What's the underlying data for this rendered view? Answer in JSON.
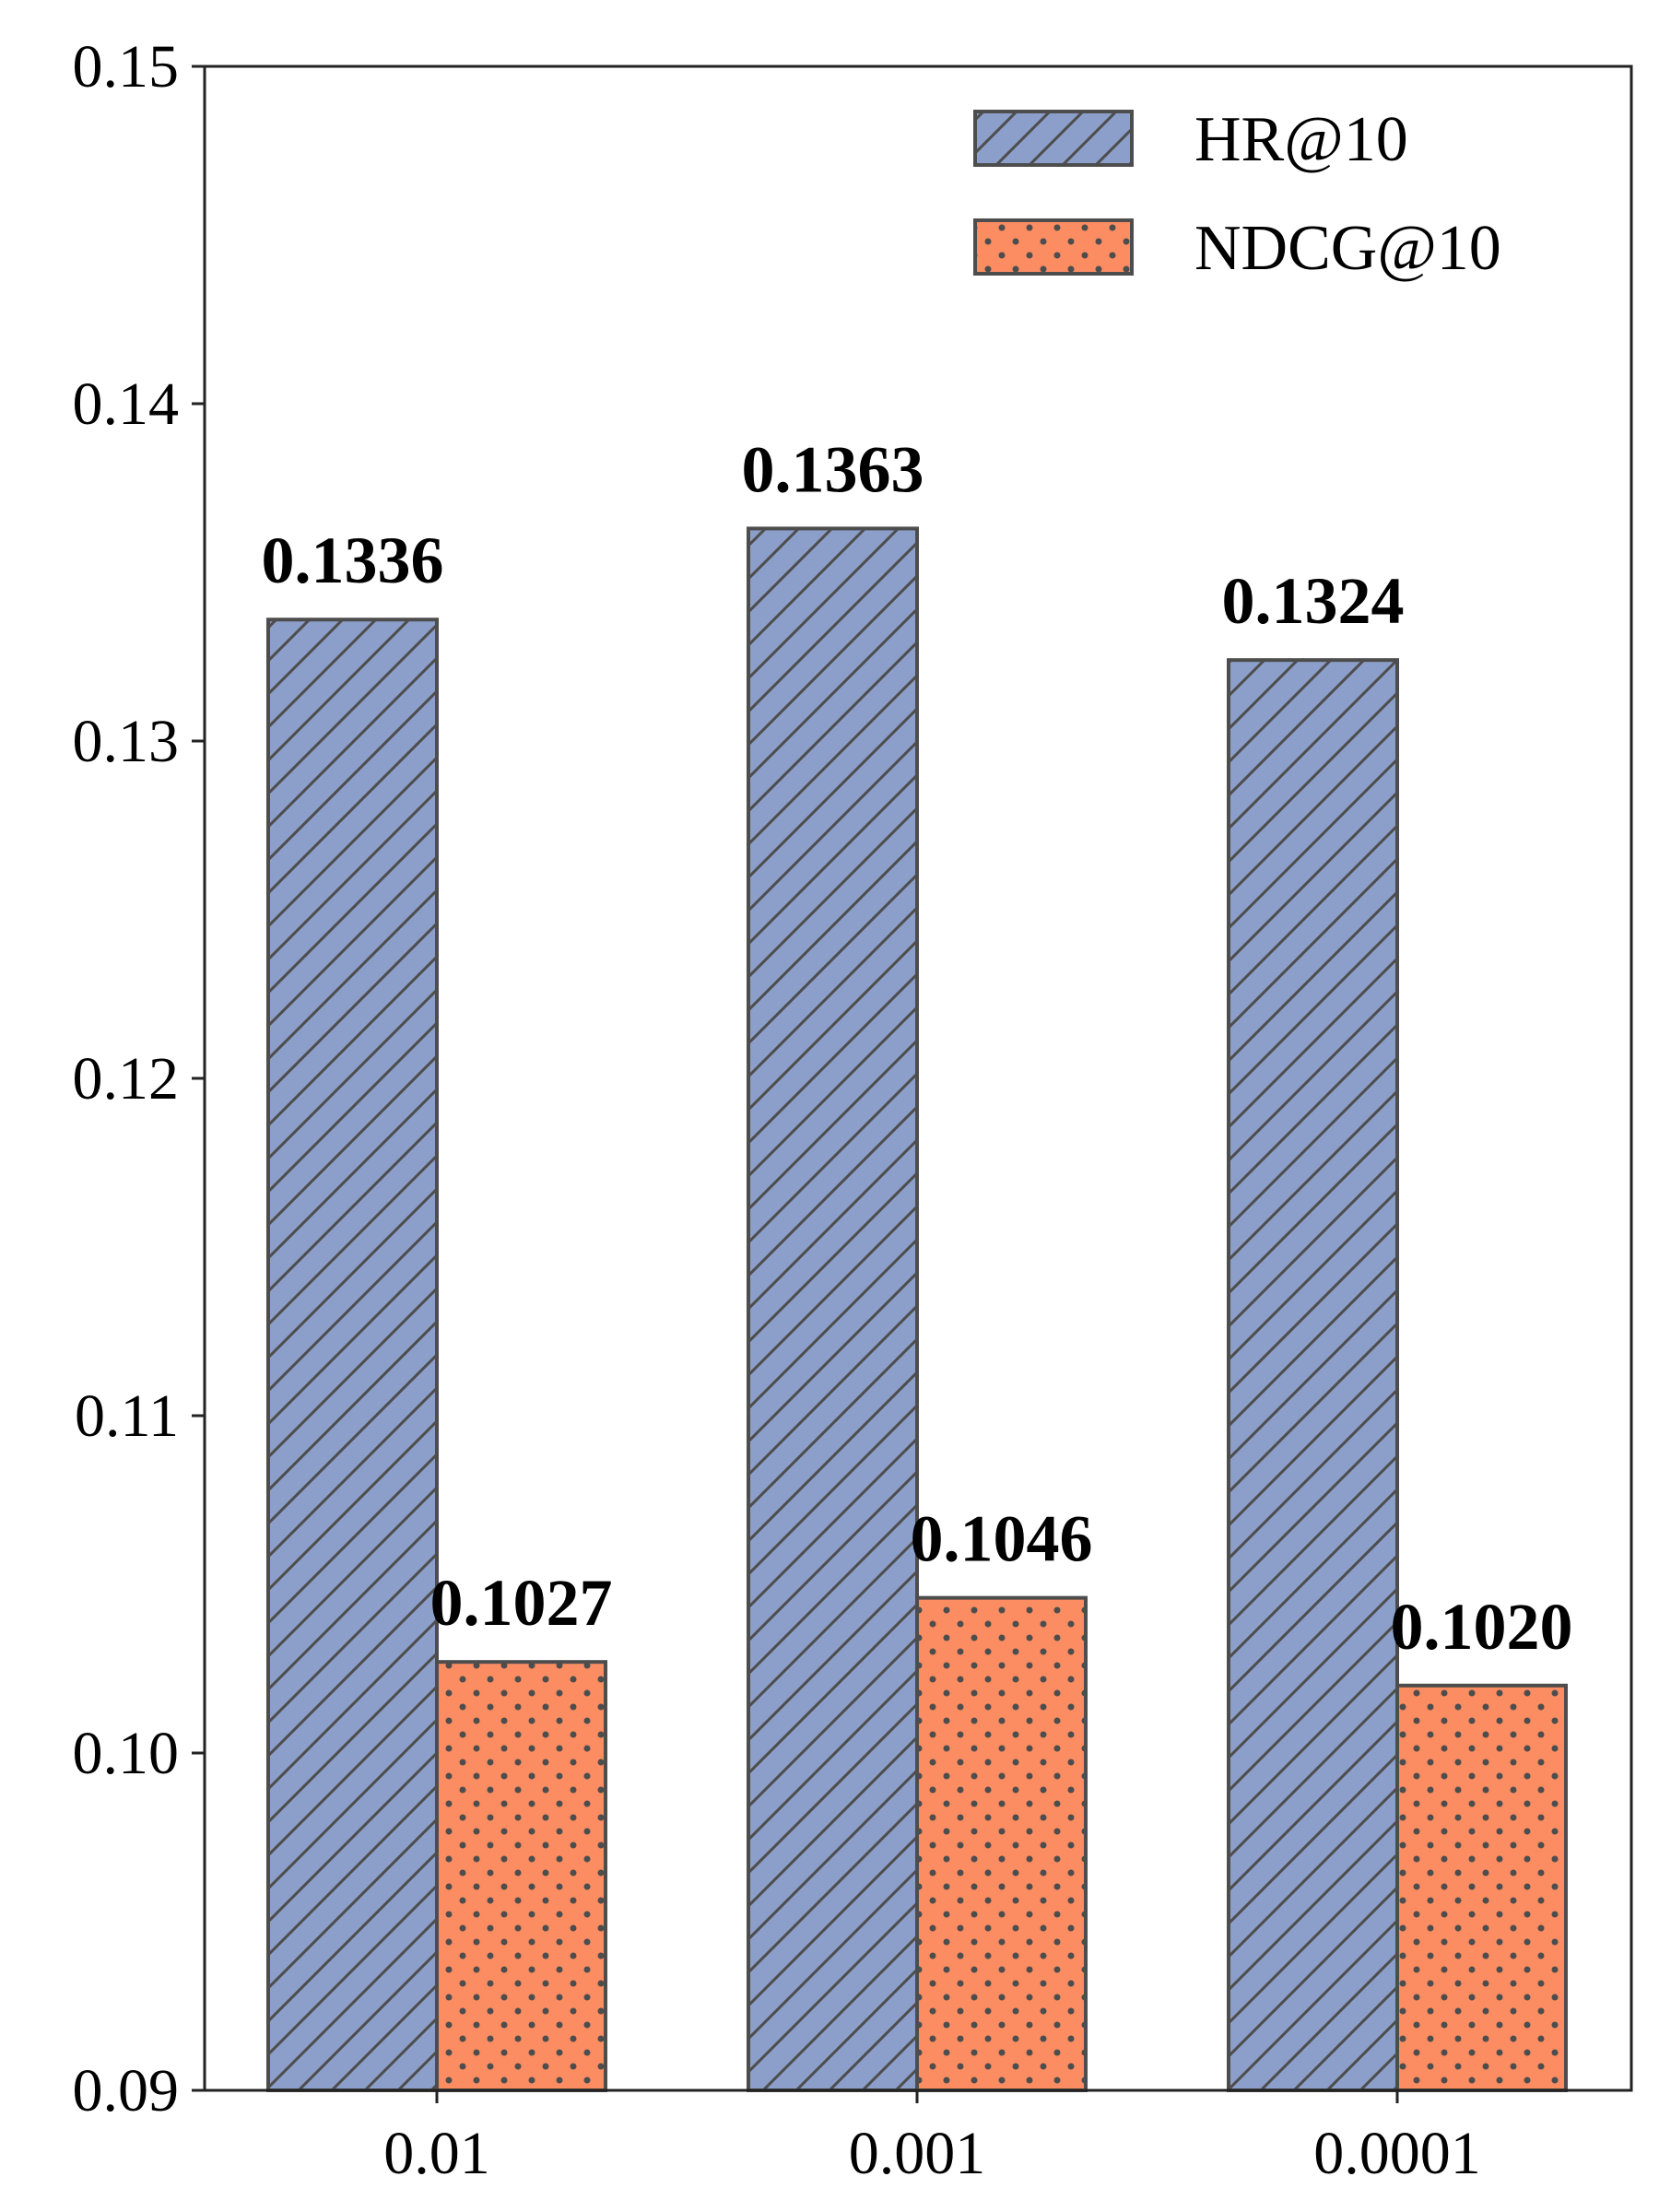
{
  "chart_data": {
    "type": "bar",
    "categories": [
      "0.01",
      "0.001",
      "0.0001"
    ],
    "series": [
      {
        "name": "HR@10",
        "values": [
          0.1336,
          0.1363,
          0.1324
        ],
        "labels": [
          "0.1336",
          "0.1363",
          "0.1324"
        ],
        "color": "#8c9fca",
        "pattern": "diagonal-hatch"
      },
      {
        "name": "NDCG@10",
        "values": [
          0.1027,
          0.1046,
          0.102
        ],
        "labels": [
          "0.1027",
          "0.1046",
          "0.1020"
        ],
        "color": "#fc8d62",
        "pattern": "dots"
      }
    ],
    "ylim": [
      0.09,
      0.15
    ],
    "yticks": [
      0.09,
      0.1,
      0.11,
      0.12,
      0.13,
      0.14,
      0.15
    ],
    "ytick_labels": [
      "0.09",
      "0.10",
      "0.11",
      "0.12",
      "0.13",
      "0.14",
      "0.15"
    ],
    "title": "",
    "xlabel": "",
    "ylabel": "",
    "grid": false,
    "legend_position": "top-right",
    "edge_color": "#4d4d4d"
  }
}
